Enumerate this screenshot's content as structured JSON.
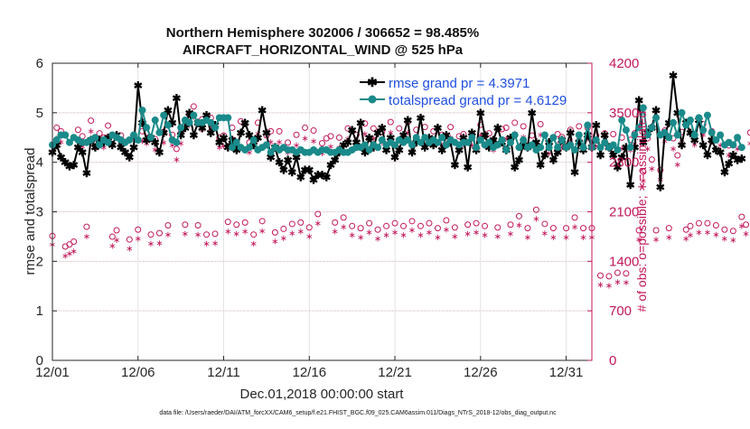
{
  "chart_data": {
    "type": "line",
    "title": "Northern Hemisphere 302006 / 306652 = 98.485%",
    "subtitle": "AIRCRAFT_HORIZONTAL_WIND @ 525 hPa",
    "xlabel": "Dec.01,2018 00:00:00 start",
    "ylabel": "rmse and totalspread",
    "ylabel_right": "# of obs: o=possible; ∗=assimilated",
    "xlim": [
      0,
      31.5
    ],
    "ylim": [
      0,
      6
    ],
    "ylim_right": [
      0,
      4200
    ],
    "x_ticks": [
      0,
      5,
      10,
      15,
      20,
      25,
      30
    ],
    "x_tick_labels": [
      "12/01",
      "12/06",
      "12/11",
      "12/16",
      "12/21",
      "12/26",
      "12/31"
    ],
    "y_ticks": [
      0,
      1,
      2,
      3,
      4,
      5,
      6
    ],
    "y_tick_labels": [
      "0",
      "1",
      "2",
      "3",
      "4",
      "5",
      "6"
    ],
    "y_right_ticks": [
      0,
      700,
      1400,
      2100,
      2800,
      3500,
      4200
    ],
    "y_right_tick_labels": [
      "0",
      "700",
      "1400",
      "2100",
      "2800",
      "3500",
      "4200"
    ],
    "grid": true,
    "legend_position": "top-right",
    "colors": {
      "rmse": "#000000",
      "totalspread": "#1a8a8a",
      "obs": "#c2185b",
      "legend_text": "#1f4fe0"
    },
    "series": [
      {
        "name": "rmse grand pr = 4.3971",
        "axis": "left",
        "x_step": 0.25,
        "values": [
          4.2,
          4.35,
          4.1,
          4.0,
          3.92,
          3.95,
          4.3,
          4.2,
          3.78,
          4.45,
          4.3,
          4.45,
          4.4,
          4.5,
          4.35,
          4.55,
          4.3,
          4.2,
          4.1,
          4.3,
          5.55,
          4.8,
          4.45,
          4.5,
          4.4,
          4.2,
          4.6,
          5.05,
          4.8,
          5.3,
          4.55,
          4.7,
          5.0,
          4.55,
          4.8,
          4.7,
          4.95,
          4.6,
          4.75,
          4.4,
          4.5,
          4.3,
          4.45,
          4.25,
          4.6,
          4.8,
          4.55,
          4.35,
          4.5,
          5.05,
          4.6,
          4.1,
          4.3,
          4.0,
          3.85,
          4.05,
          3.8,
          4.1,
          3.7,
          3.85,
          3.85,
          3.65,
          3.75,
          3.75,
          3.7,
          3.95,
          4.05,
          4.2,
          4.35,
          4.4,
          4.65,
          4.4,
          4.8,
          4.2,
          4.5,
          4.3,
          4.6,
          4.7,
          4.25,
          4.5,
          4.1,
          4.25,
          4.55,
          4.85,
          4.2,
          4.4,
          4.9,
          4.3,
          4.5,
          4.35,
          4.7,
          4.25,
          4.55,
          4.4,
          3.95,
          4.25,
          4.5,
          3.9,
          4.6,
          4.25,
          5.0,
          4.55,
          4.3,
          4.45,
          4.7,
          4.4,
          4.25,
          4.5,
          3.9,
          4.05,
          4.35,
          4.3,
          5.0,
          4.4,
          3.95,
          4.15,
          4.4,
          4.05,
          4.2,
          4.45,
          4.3,
          4.6,
          3.8,
          4.4,
          4.25,
          4.55,
          4.3,
          4.75,
          4.15,
          4.55,
          4.3,
          4.15,
          3.9,
          4.1,
          4.3,
          3.55,
          4.3,
          5.25,
          4.4,
          4.6,
          4.7,
          5.05,
          3.5,
          4.55,
          4.8,
          5.75,
          5.0,
          4.35,
          4.8,
          4.6,
          4.45,
          4.85,
          4.35,
          4.15,
          4.45,
          4.25,
          4.2,
          3.8,
          3.98,
          4.15,
          4.05,
          4.08
        ]
      },
      {
        "name": "totalspread grand pr = 4.6129",
        "axis": "left",
        "x_step": 0.25,
        "values": [
          4.35,
          4.45,
          4.55,
          4.55,
          4.4,
          4.5,
          4.45,
          4.4,
          4.4,
          4.45,
          4.5,
          4.35,
          4.45,
          4.4,
          4.55,
          4.5,
          4.45,
          4.4,
          4.45,
          4.55,
          4.45,
          5.05,
          4.7,
          4.5,
          4.85,
          4.6,
          4.95,
          4.75,
          4.45,
          4.4,
          4.7,
          4.85,
          4.8,
          4.95,
          4.8,
          4.8,
          4.85,
          4.8,
          4.7,
          4.9,
          4.9,
          4.9,
          4.3,
          4.4,
          4.3,
          4.25,
          4.3,
          4.45,
          4.25,
          4.3,
          4.35,
          4.2,
          4.3,
          4.25,
          4.3,
          4.25,
          4.25,
          4.2,
          4.25,
          4.2,
          4.2,
          4.25,
          4.2,
          4.25,
          4.25,
          4.2,
          4.2,
          4.25,
          4.2,
          4.2,
          4.25,
          4.3,
          4.3,
          4.35,
          4.25,
          4.35,
          4.3,
          4.45,
          4.35,
          4.4,
          4.35,
          4.45,
          4.4,
          4.45,
          4.35,
          4.5,
          4.4,
          4.5,
          4.4,
          4.45,
          4.4,
          4.5,
          4.35,
          4.45,
          4.4,
          4.35,
          4.4,
          4.4,
          4.5,
          4.3,
          4.45,
          4.35,
          4.4,
          4.3,
          4.35,
          4.45,
          4.25,
          4.4,
          4.55,
          4.3,
          4.45,
          4.3,
          4.35,
          4.25,
          4.3,
          4.55,
          4.3,
          4.5,
          4.3,
          4.45,
          4.3,
          4.35,
          4.25,
          4.55,
          4.3,
          4.75,
          4.3,
          4.45,
          4.3,
          4.4,
          4.3,
          4.35,
          4.25,
          4.85,
          4.65,
          4.3,
          4.55,
          4.7,
          5.1,
          4.55,
          4.7,
          4.9,
          4.55,
          4.6,
          4.5,
          4.8,
          4.55,
          5.0,
          4.75,
          4.85,
          4.55,
          4.9,
          4.65,
          4.95,
          4.6,
          4.45,
          4.55,
          4.35,
          4.4,
          4.35,
          4.5,
          4.3
        ]
      },
      {
        "name": "obs possible",
        "axis": "right",
        "marker": "circle",
        "x_step": 0.25,
        "values": [
          1720,
          3250,
          3200,
          1570,
          1600,
          1640,
          3220,
          3130,
          1850,
          3350,
          3110,
          3170,
          3110,
          3280,
          1710,
          1800,
          3140,
          3050,
          1670,
          3130,
          1810,
          3200,
          3180,
          1740,
          3090,
          1760,
          3190,
          1870,
          3150,
          2950,
          3180,
          1880,
          3440,
          3550,
          1870,
          3370,
          1740,
          3390,
          1750,
          3110,
          3140,
          1920,
          3250,
          1880,
          3340,
          1910,
          3040,
          1740,
          3320,
          1930,
          3140,
          3200,
          1770,
          3200,
          1820,
          3040,
          1890,
          3150,
          1910,
          3250,
          1840,
          3210,
          2030,
          3030,
          3100,
          3130,
          1910,
          3110,
          1980,
          3240,
          1860,
          3150,
          1830,
          3310,
          1900,
          3240,
          1810,
          3190,
          1860,
          3330,
          1900,
          3240,
          1860,
          3330,
          1930,
          3220,
          1860,
          3260,
          1900,
          3200,
          1830,
          3150,
          1940,
          3260,
          1840,
          3130,
          3160,
          1880,
          3150,
          1900,
          3290,
          1860,
          3170,
          3080,
          1840,
          3230,
          3250,
          1880,
          3320,
          2000,
          3270,
          1830,
          3140,
          2090,
          3300,
          1890,
          3030,
          1830,
          3160,
          3120,
          1830,
          3220,
          1980,
          3270,
          1830,
          3250,
          1830,
          3140,
          1160,
          3170,
          1150,
          3160,
          1200,
          3110,
          1190,
          3080,
          3170,
          1800,
          2630,
          3100,
          2800,
          1800,
          2650,
          3210,
          1830,
          3100,
          2860,
          3190,
          1810,
          1860,
          3160,
          1900,
          3300,
          1900,
          3200,
          1870,
          3150,
          1810,
          3000,
          1790,
          3100,
          1990,
          1880,
          3180,
          2890,
          1860,
          3090,
          1880,
          3250,
          1290,
          0
        ]
      },
      {
        "name": "obs assimilated",
        "axis": "right",
        "marker": "asterisk",
        "x_step": 0.25,
        "values": [
          1700,
          3200,
          3150,
          1540,
          1570,
          1600,
          3180,
          3080,
          1810,
          3300,
          3060,
          3130,
          3070,
          3230,
          1680,
          1760,
          3100,
          3000,
          1640,
          3080,
          1780,
          3160,
          3130,
          1710,
          3040,
          1720,
          3140,
          1840,
          3100,
          2900,
          3130,
          1850,
          3390,
          3500,
          1840,
          3320,
          1710,
          3340,
          1720,
          3070,
          3090,
          1880,
          3200,
          1850,
          3290,
          1880,
          3000,
          1710,
          3270,
          1890,
          3100,
          3150,
          1740,
          3150,
          1790,
          3000,
          1860,
          3100,
          1880,
          3200,
          1810,
          3160,
          2000,
          2990,
          3050,
          3080,
          1880,
          3070,
          1950,
          3190,
          1830,
          3100,
          1800,
          3260,
          1870,
          3200,
          1780,
          3140,
          1830,
          3280,
          1870,
          3190,
          1830,
          3280,
          1900,
          3170,
          1830,
          3210,
          1870,
          3160,
          1800,
          3100,
          1910,
          3210,
          1810,
          3090,
          3110,
          1850,
          3100,
          1870,
          3240,
          1830,
          3120,
          3030,
          1810,
          3180,
          3200,
          1850,
          3270,
          1970,
          3220,
          1800,
          3100,
          2060,
          3250,
          1860,
          2990,
          1800,
          3110,
          3070,
          1800,
          3170,
          1950,
          3220,
          1800,
          3200,
          1800,
          3090,
          1130,
          3120,
          1120,
          3110,
          1170,
          3060,
          1160,
          3030,
          3120,
          1770,
          2600,
          3050,
          2770,
          1770,
          2620,
          3160,
          1800,
          3050,
          2830,
          3140,
          1780,
          1830,
          3110,
          1870,
          3250,
          1870,
          3150,
          1840,
          3100,
          1780,
          2960,
          1760,
          3050,
          1960,
          1850,
          3130,
          2860,
          1830,
          3040,
          1850,
          3200,
          1260,
          0
        ]
      }
    ],
    "legend": [
      "rmse grand pr = 4.3971",
      "totalspread grand pr = 4.6129"
    ],
    "footer": "data file: /Users/raeder/DAI/ATM_forcXX/CAM6_setup/f.e21.FHIST_BGC.f09_025.CAM6assim.011/Diags_NTrS_2018-12/obs_diag_output.nc"
  }
}
